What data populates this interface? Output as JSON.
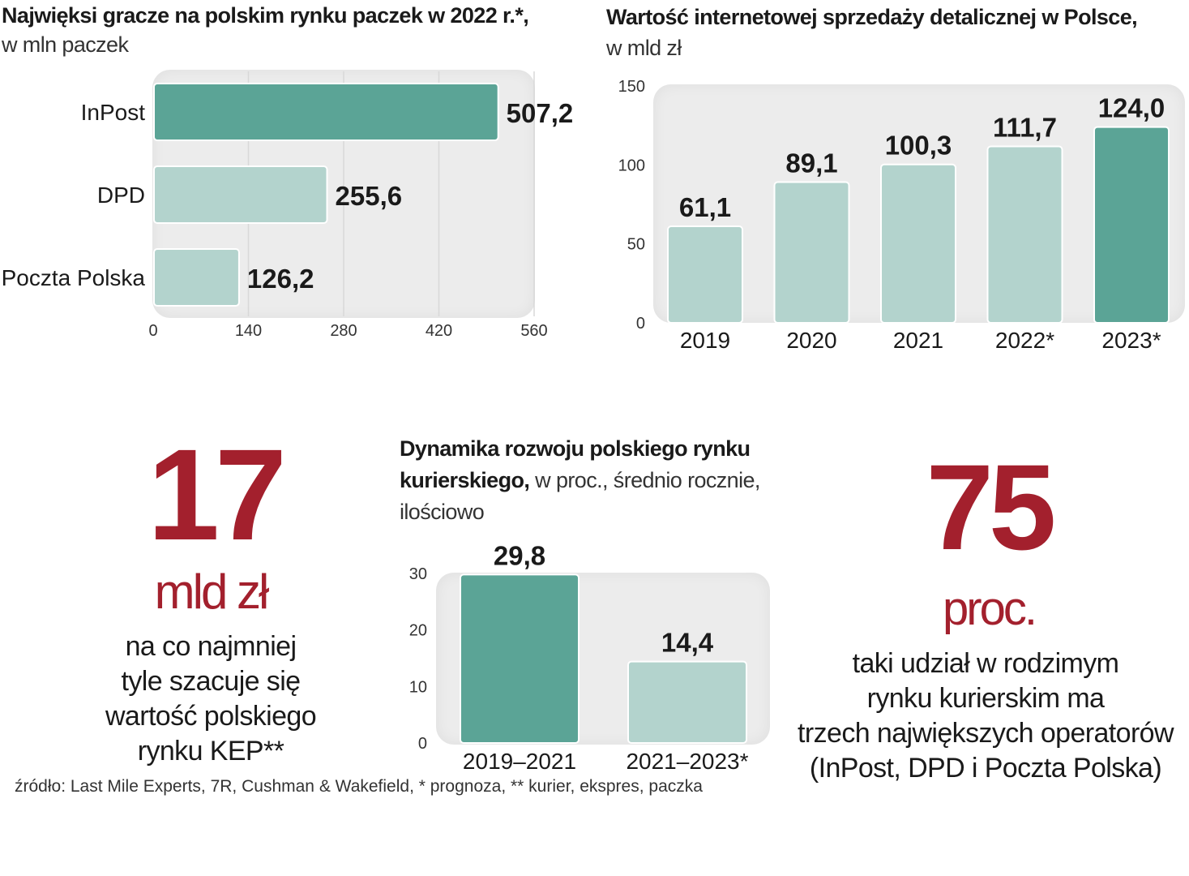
{
  "colors": {
    "accent": "#5ba496",
    "light": "#b3d3cd",
    "stat_red": "#a3202d",
    "plot_bg": "#ececec"
  },
  "chart_data": [
    {
      "id": "parcels",
      "type": "bar",
      "orientation": "horizontal",
      "title": "Najwięksi gracze na polskim rynku paczek w 2022 r.*,",
      "subtitle": "w mln paczek",
      "categories": [
        "InPost",
        "DPD",
        "Poczta Polska"
      ],
      "values": [
        507.2,
        255.6,
        126.2
      ],
      "value_labels": [
        "507,2",
        "255,6",
        "126,2"
      ],
      "highlight": [
        true,
        false,
        false
      ],
      "xlim": [
        0,
        560
      ],
      "xticks": [
        0,
        140,
        280,
        420,
        560
      ],
      "xtick_labels": [
        "0",
        "140",
        "280",
        "420",
        "560"
      ],
      "grid": true
    },
    {
      "id": "ecommerce",
      "type": "bar",
      "orientation": "vertical",
      "title": "Wartość internetowej sprzedaży detalicznej w Polsce,",
      "subtitle": "w mld zł",
      "categories": [
        "2019",
        "2020",
        "2021",
        "2022*",
        "2023*"
      ],
      "values": [
        61.1,
        89.1,
        100.3,
        111.7,
        124.0
      ],
      "value_labels": [
        "61,1",
        "89,1",
        "100,3",
        "111,7",
        "124,0"
      ],
      "highlight": [
        false,
        false,
        false,
        false,
        true
      ],
      "ylim": [
        0,
        150
      ],
      "yticks": [
        0,
        50,
        100,
        150
      ],
      "ytick_labels": [
        "0",
        "50",
        "100",
        "150"
      ],
      "grid": false
    },
    {
      "id": "courier",
      "type": "bar",
      "orientation": "vertical",
      "title_lines": [
        "Dynamika rozwoju polskiego rynku",
        "kurierskiego,"
      ],
      "subtitle_inline": " w proc., średnio rocznie,",
      "subtitle_line": "ilościowo",
      "categories": [
        "2019–2021",
        "2021–2023*"
      ],
      "values": [
        29.8,
        14.4
      ],
      "value_labels": [
        "29,8",
        "14,4"
      ],
      "highlight": [
        true,
        false
      ],
      "ylim": [
        0,
        30
      ],
      "yticks": [
        0,
        10,
        20,
        30
      ],
      "ytick_labels": [
        "0",
        "10",
        "20",
        "30"
      ],
      "grid": false
    }
  ],
  "stats": {
    "kep": {
      "number": "17",
      "unit": "mld zł",
      "desc_lines": [
        "na co najmniej",
        "tyle szacuje się",
        "wartość polskiego",
        "rynku KEP**"
      ]
    },
    "share": {
      "number": "75",
      "unit": "proc.",
      "desc_lines": [
        "taki udział w rodzimym",
        "rynku kurierskim ma",
        "trzech największych operatorów",
        "(InPost, DPD i Poczta Polska)"
      ]
    }
  },
  "source": "źródło: Last Mile Experts, 7R, Cushman & Wakefield, * prognoza, ** kurier, ekspres, paczka"
}
